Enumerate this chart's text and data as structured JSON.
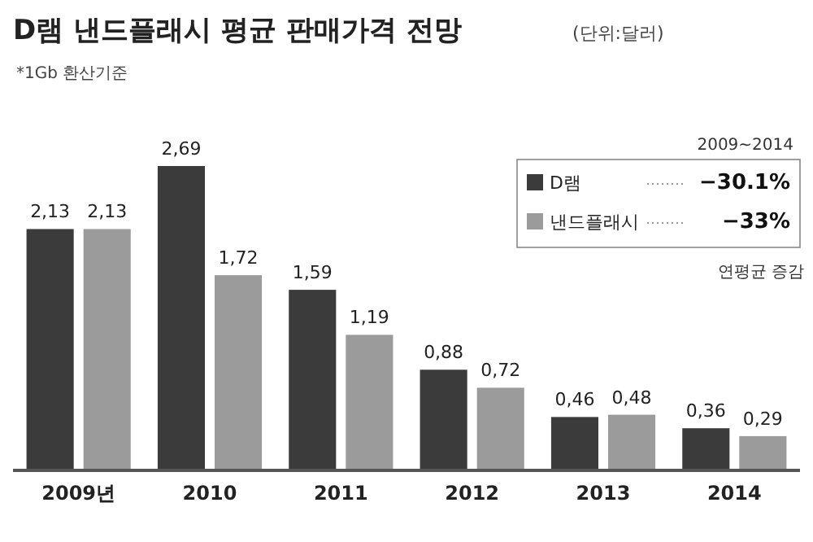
{
  "chart_data": {
    "type": "bar",
    "title": "D램 낸드플래시 평균 판매가격 전망",
    "subtitle": "(단위:달러)",
    "categories": [
      "2009년",
      "2010",
      "2011",
      "2012",
      "2013",
      "2014"
    ],
    "series": [
      {
        "name": "D램",
        "color": "#3b3b3b",
        "values": [
          2.13,
          2.69,
          1.59,
          0.88,
          0.46,
          0.36
        ],
        "value_labels": [
          "2,13",
          "2,69",
          "1,59",
          "0,88",
          "0,46",
          "0,36"
        ]
      },
      {
        "name": "낸드플래시",
        "color": "#9b9b9b",
        "values": [
          2.13,
          1.72,
          1.19,
          0.72,
          0.48,
          0.29
        ],
        "value_labels": [
          "2,13",
          "1,72",
          "1,19",
          "0,72",
          "0,48",
          "0,29"
        ]
      }
    ],
    "annotations": [
      "*1Gb 환산기준",
      "2009~2014",
      "−30.1%",
      "−33%",
      "연평균 증감"
    ],
    "legend": "top right"
  }
}
